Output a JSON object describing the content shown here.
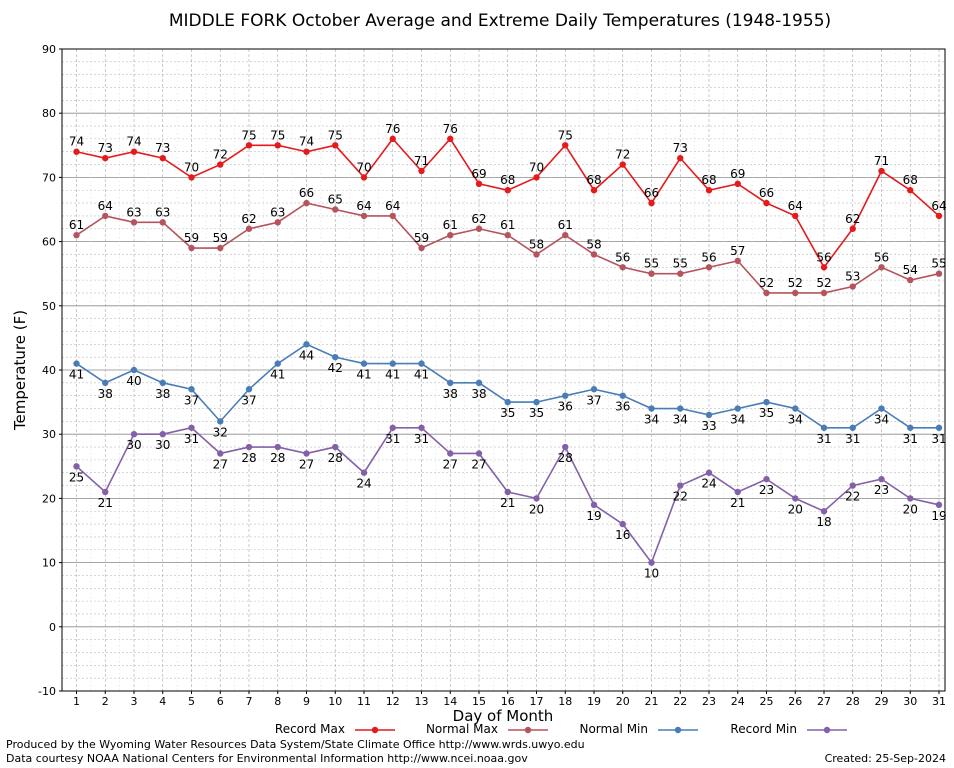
{
  "chart_data": {
    "type": "line",
    "title": "MIDDLE FORK October Average and Extreme Daily Temperatures (1948-1955)",
    "xlabel": "Day of Month",
    "ylabel": "Temperature (F)",
    "ylim": [
      -10,
      90
    ],
    "yticks": [
      "90",
      "80",
      "70",
      "60",
      "50",
      "40",
      "30",
      "20",
      "10",
      "0",
      "-10"
    ],
    "x": [
      "1",
      "2",
      "3",
      "4",
      "5",
      "6",
      "7",
      "8",
      "9",
      "10",
      "11",
      "12",
      "13",
      "14",
      "15",
      "16",
      "17",
      "18",
      "19",
      "20",
      "21",
      "22",
      "23",
      "24",
      "25",
      "26",
      "27",
      "28",
      "29",
      "30",
      "31"
    ],
    "grid": true,
    "legend_position": "bottom",
    "series": [
      {
        "name": "Record Max",
        "color": "#e41a1c",
        "label_pos": "above",
        "values": [
          74,
          73,
          74,
          73,
          70,
          72,
          75,
          75,
          74,
          75,
          70,
          76,
          71,
          76,
          69,
          68,
          70,
          75,
          68,
          72,
          66,
          73,
          68,
          69,
          66,
          64,
          56,
          62,
          71,
          68,
          64
        ]
      },
      {
        "name": "Normal Max",
        "color": "#b5545c",
        "label_pos": "above",
        "values": [
          61,
          64,
          63,
          63,
          59,
          59,
          62,
          63,
          66,
          65,
          64,
          64,
          59,
          61,
          62,
          61,
          58,
          61,
          58,
          56,
          55,
          55,
          56,
          57,
          52,
          52,
          52,
          53,
          56,
          54,
          55
        ]
      },
      {
        "name": "Normal Min",
        "color": "#4a7db8",
        "label_pos": "below",
        "values": [
          41,
          38,
          40,
          38,
          37,
          32,
          37,
          41,
          44,
          42,
          41,
          41,
          41,
          38,
          38,
          35,
          35,
          36,
          37,
          36,
          34,
          34,
          33,
          34,
          35,
          34,
          31,
          31,
          34,
          31,
          31
        ]
      },
      {
        "name": "Record Min",
        "color": "#8460a8",
        "label_pos": "below",
        "values": [
          25,
          21,
          30,
          30,
          31,
          27,
          28,
          28,
          27,
          28,
          24,
          31,
          31,
          27,
          27,
          21,
          20,
          28,
          19,
          16,
          10,
          22,
          24,
          21,
          23,
          20,
          18,
          22,
          23,
          20,
          19
        ]
      }
    ]
  },
  "footer": {
    "produced_by": "Produced by the Wyoming Water Resources Data System/State Climate Office http://www.wrds.uwyo.edu",
    "data_courtesy": "Data courtesy NOAA National Centers for Environmental Information http://www.ncei.noaa.gov",
    "created": "Created:  25-Sep-2024"
  }
}
